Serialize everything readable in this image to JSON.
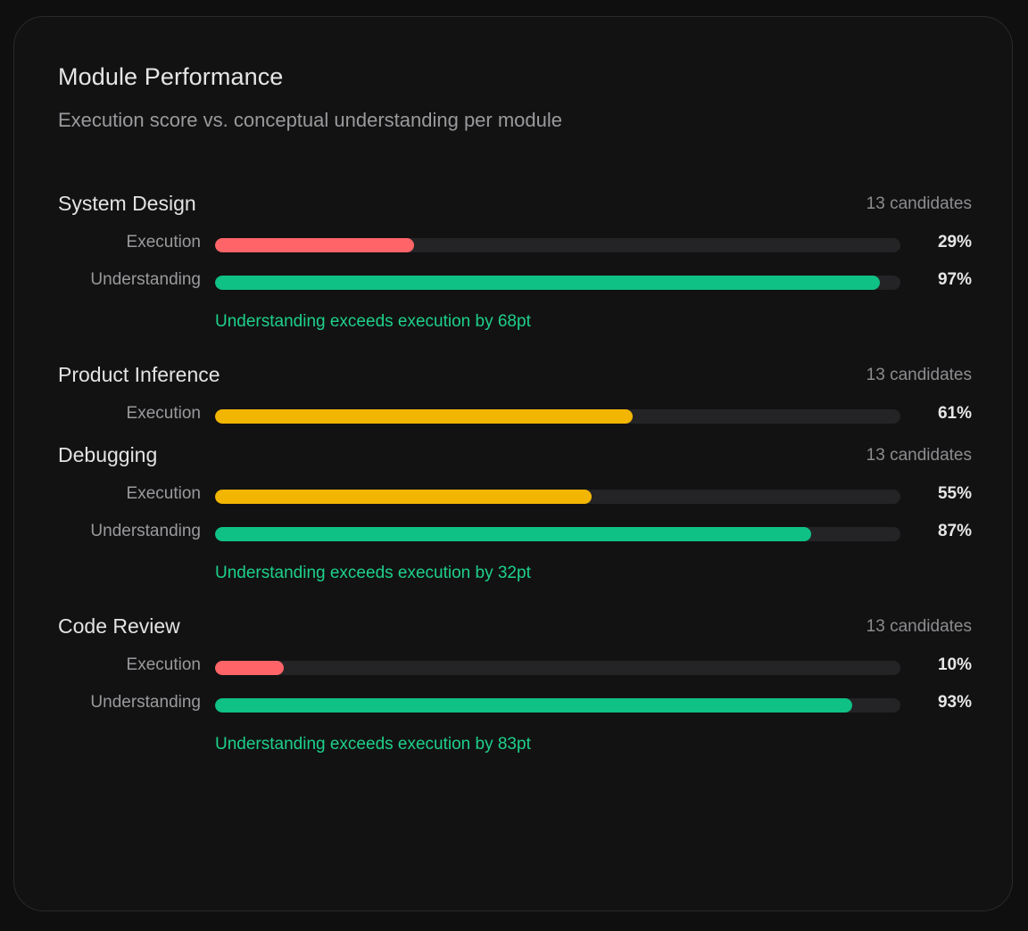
{
  "card": {
    "title": "Module Performance",
    "subtitle": "Execution score vs. conceptual understanding per module"
  },
  "colors": {
    "low": "#ff6468",
    "mid": "#f2b502",
    "high": "#0fc184",
    "note": "#1ed08a"
  },
  "modules": [
    {
      "name": "System Design",
      "candidates": "13 candidates",
      "metrics": [
        {
          "label": "Execution",
          "value": 29,
          "display": "29%",
          "color": "#ff6468"
        },
        {
          "label": "Understanding",
          "value": 97,
          "display": "97%",
          "color": "#0fc184"
        }
      ],
      "note": "Understanding exceeds execution by 68pt"
    },
    {
      "name": "Product Inference",
      "candidates": "13 candidates",
      "metrics": [
        {
          "label": "Execution",
          "value": 61,
          "display": "61%",
          "color": "#f2b502"
        }
      ],
      "note": ""
    },
    {
      "name": "Debugging",
      "candidates": "13 candidates",
      "metrics": [
        {
          "label": "Execution",
          "value": 55,
          "display": "55%",
          "color": "#f2b502"
        },
        {
          "label": "Understanding",
          "value": 87,
          "display": "87%",
          "color": "#0fc184"
        }
      ],
      "note": "Understanding exceeds execution by 32pt"
    },
    {
      "name": "Code Review",
      "candidates": "13 candidates",
      "metrics": [
        {
          "label": "Execution",
          "value": 10,
          "display": "10%",
          "color": "#ff6468"
        },
        {
          "label": "Understanding",
          "value": 93,
          "display": "93%",
          "color": "#0fc184"
        }
      ],
      "note": "Understanding exceeds execution by 83pt"
    }
  ]
}
